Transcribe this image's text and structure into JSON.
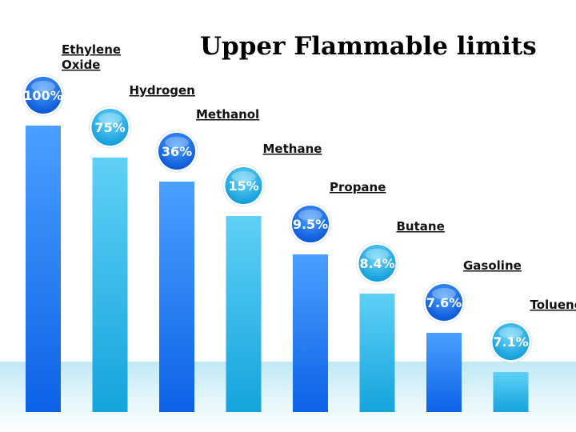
{
  "title": "Upper Flammable limits",
  "chart_data": {
    "type": "bar",
    "title": "Upper Flammable limits",
    "categories": [
      "Ethylene Oxide",
      "Hydrogen",
      "Methanol",
      "Methane",
      "Propane",
      "Butane",
      "Gasoline",
      "Toluene"
    ],
    "values": [
      100,
      75,
      36,
      15,
      9.5,
      8.4,
      7.6,
      7.1
    ],
    "value_labels": [
      "100%",
      "75%",
      "36%",
      "15%",
      "9.5%",
      "8.4%",
      "7.6%",
      "7.1%"
    ],
    "unit": "%",
    "grid": false,
    "legend": "none",
    "colors": {
      "dark_bar": "#1a74ee",
      "light_bar": "#2cb6e8",
      "dark_bubble": "#0f5fe0",
      "light_bubble": "#1fa8e0"
    }
  }
}
